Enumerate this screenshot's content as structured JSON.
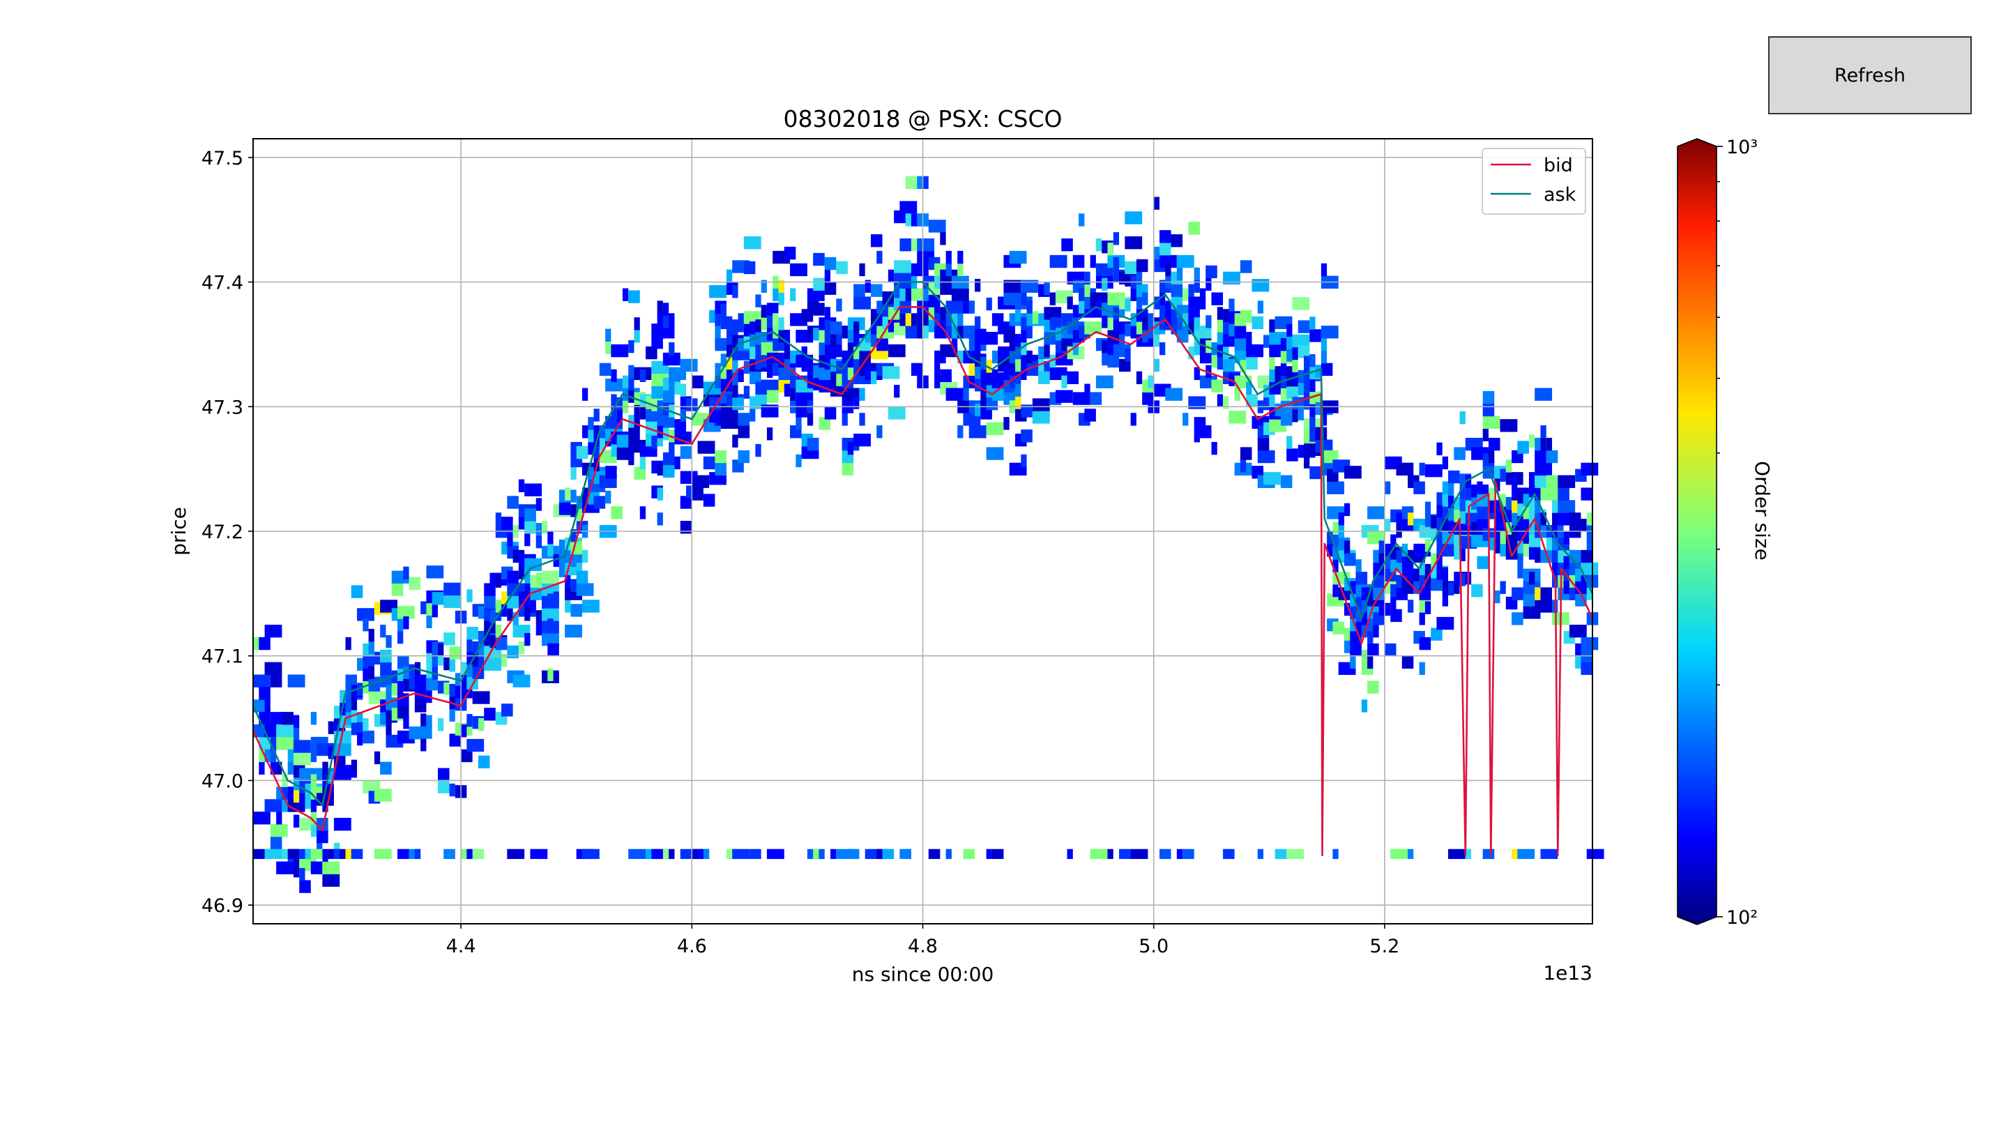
{
  "ui": {
    "refresh_label": "Refresh"
  },
  "chart_data": {
    "type": "heatmap",
    "title": "08302018 @ PSX: CSCO",
    "xlabel": "ns since 00:00",
    "x_offset_label": "1e13",
    "ylabel": "price",
    "xlim": [
      42200000000000,
      53800000000000
    ],
    "ylim": [
      46.885,
      47.515
    ],
    "x_ticks": [
      44000000000000,
      46000000000000,
      48000000000000,
      50000000000000,
      52000000000000
    ],
    "x_tick_labels": [
      "4.4",
      "4.6",
      "4.8",
      "5.0",
      "5.2"
    ],
    "y_ticks": [
      46.9,
      47.0,
      47.1,
      47.2,
      47.3,
      47.4,
      47.5
    ],
    "y_tick_labels": [
      "46.9",
      "47.0",
      "47.1",
      "47.2",
      "47.3",
      "47.4",
      "47.5"
    ],
    "grid": true,
    "legend": {
      "placement": "top-right",
      "entries": [
        {
          "name": "bid",
          "color": "#dc143c"
        },
        {
          "name": "ask",
          "color": "#008080"
        }
      ]
    },
    "colorbar": {
      "label": "Order size",
      "scale": "log",
      "min": 100,
      "max": 1000,
      "tick_labels": [
        "10²",
        "10³"
      ],
      "colormap": "jet"
    },
    "series": [
      {
        "name": "bid",
        "color": "#dc143c",
        "x": [
          42200000000000,
          42500000000000,
          42700000000000,
          42800000000000,
          43000000000000,
          43300000000000,
          43600000000000,
          44000000000000,
          44300000000000,
          44600000000000,
          44900000000000,
          45200000000000,
          45400000000000,
          45700000000000,
          46000000000000,
          46200000000000,
          46400000000000,
          46700000000000,
          47000000000000,
          47300000000000,
          47600000000000,
          47800000000000,
          48000000000000,
          48200000000000,
          48400000000000,
          48600000000000,
          48900000000000,
          49200000000000,
          49500000000000,
          49800000000000,
          50100000000000,
          50400000000000,
          50700000000000,
          50900000000000,
          51100000000000,
          51450000000000,
          51460000000000,
          51480000000000,
          51600000000000,
          51800000000000,
          51900000000000,
          52100000000000,
          52300000000000,
          52650000000000,
          52700000000000,
          52730000000000,
          52900000000000,
          52920000000000,
          52960000000000,
          53100000000000,
          53300000000000,
          53480000000000,
          53500000000000,
          53530000000000,
          53700000000000,
          53800000000000
        ],
        "y": [
          47.04,
          46.98,
          46.97,
          46.96,
          47.05,
          47.06,
          47.07,
          47.06,
          47.11,
          47.15,
          47.16,
          47.26,
          47.29,
          47.28,
          47.27,
          47.3,
          47.33,
          47.34,
          47.32,
          47.31,
          47.35,
          47.38,
          47.38,
          47.36,
          47.32,
          47.31,
          47.33,
          47.34,
          47.36,
          47.35,
          47.37,
          47.33,
          47.32,
          47.29,
          47.3,
          47.31,
          46.94,
          47.19,
          47.16,
          47.11,
          47.14,
          47.17,
          47.15,
          47.21,
          46.94,
          47.22,
          47.23,
          46.94,
          47.24,
          47.18,
          47.21,
          47.16,
          46.94,
          47.17,
          47.15,
          47.13
        ]
      },
      {
        "name": "ask",
        "color": "#008080",
        "x": [
          42200000000000,
          42500000000000,
          42700000000000,
          42800000000000,
          43000000000000,
          43300000000000,
          43600000000000,
          44000000000000,
          44300000000000,
          44600000000000,
          44900000000000,
          45200000000000,
          45400000000000,
          45700000000000,
          46000000000000,
          46200000000000,
          46400000000000,
          46700000000000,
          47000000000000,
          47300000000000,
          47600000000000,
          47800000000000,
          48000000000000,
          48200000000000,
          48400000000000,
          48600000000000,
          48900000000000,
          49200000000000,
          49500000000000,
          49800000000000,
          50100000000000,
          50400000000000,
          50700000000000,
          50900000000000,
          51100000000000,
          51450000000000,
          51480000000000,
          51600000000000,
          51800000000000,
          51900000000000,
          52100000000000,
          52300000000000,
          52700000000000,
          52900000000000,
          53100000000000,
          53300000000000,
          53500000000000,
          53700000000000,
          53800000000000
        ],
        "y": [
          47.06,
          47.0,
          46.99,
          46.98,
          47.07,
          47.08,
          47.09,
          47.08,
          47.13,
          47.17,
          47.18,
          47.28,
          47.31,
          47.3,
          47.29,
          47.32,
          47.35,
          47.36,
          47.34,
          47.33,
          47.37,
          47.4,
          47.4,
          47.38,
          47.34,
          47.33,
          47.35,
          47.36,
          47.38,
          47.37,
          47.39,
          47.35,
          47.34,
          47.31,
          47.32,
          47.33,
          47.21,
          47.18,
          47.13,
          47.16,
          47.19,
          47.17,
          47.24,
          47.25,
          47.2,
          47.23,
          47.19,
          47.17,
          47.15
        ]
      }
    ]
  }
}
